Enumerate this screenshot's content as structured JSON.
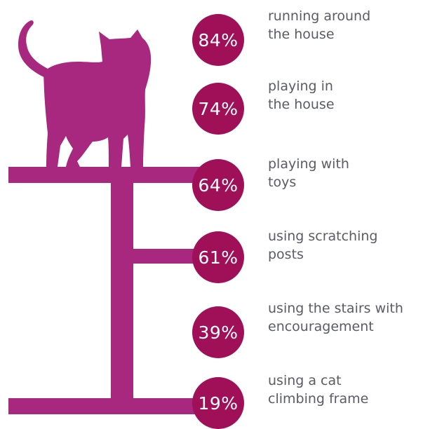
{
  "colors": {
    "post": "#a8287f",
    "cat": "#a8287f",
    "circle": "#a01058",
    "text": "#5b5b66"
  },
  "chart_data": {
    "type": "bar",
    "categories": [
      "running around the house",
      "playing in the house",
      "playing with toys",
      "using scratching posts",
      "using the stairs with encouragement",
      "using a cat climbing frame"
    ],
    "values": [
      84,
      74,
      64,
      61,
      39,
      19
    ],
    "value_labels": [
      "84%",
      "74%",
      "64%",
      "61%",
      "39%",
      "19%"
    ],
    "label_lines": [
      [
        "running around",
        "the house"
      ],
      [
        "playing in",
        "the house"
      ],
      [
        "playing with",
        "toys"
      ],
      [
        "using scratching",
        "posts"
      ],
      [
        "using the stairs with",
        "encouragement"
      ],
      [
        "using a cat",
        "climbing frame"
      ]
    ],
    "title": "",
    "xlabel": "",
    "ylabel": ""
  }
}
